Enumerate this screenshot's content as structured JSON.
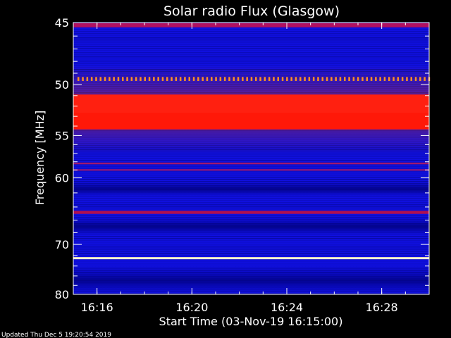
{
  "chart_data": {
    "type": "heatmap",
    "title": "Solar radio Flux (Glasgow)",
    "xlabel": "Start Time (03-Nov-19 16:15:00)",
    "ylabel": "Frequency [MHz]",
    "y_reversed": true,
    "ylim": [
      45,
      80
    ],
    "y_ticks": [
      45,
      50,
      55,
      60,
      70,
      80
    ],
    "y_scale": "reciprocal",
    "x_ticks": [
      "16:16",
      "16:20",
      "16:24",
      "16:28"
    ],
    "x_range": [
      "16:15",
      "16:30"
    ],
    "background_color": "#1010e0",
    "bands": [
      {
        "freq": 45.2,
        "width": 0.3,
        "color": "#b01060"
      },
      {
        "freq": 49.5,
        "width": 0.35,
        "color": "#ff9020",
        "dotted": true
      },
      {
        "freq": 51.8,
        "width": 1.8,
        "color": "#ff2010"
      },
      {
        "freq": 53.5,
        "width": 1.7,
        "color": "#ff1808"
      },
      {
        "freq": 58.2,
        "width": 0.2,
        "color": "#a01870"
      },
      {
        "freq": 59.0,
        "width": 0.2,
        "color": "#901880"
      },
      {
        "freq": 64.8,
        "width": 0.45,
        "color": "#b01050"
      },
      {
        "freq": 72.5,
        "width": 0.4,
        "color": "#fff0a0"
      }
    ],
    "footer": "Updated Thu Dec  5 19:20:54 2019"
  }
}
